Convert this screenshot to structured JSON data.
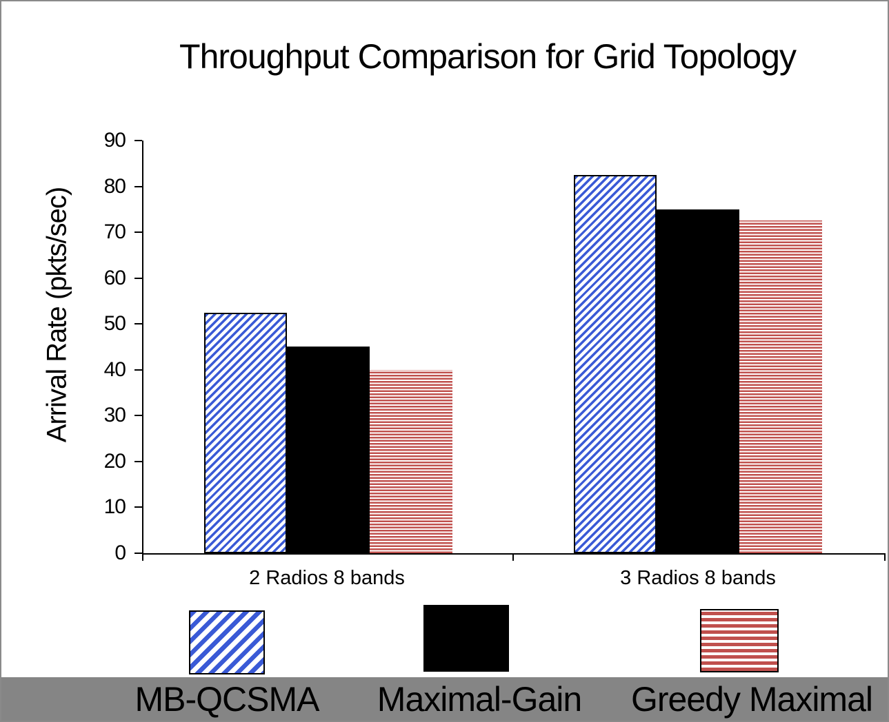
{
  "chart_data": {
    "type": "bar",
    "title": "Throughput Comparison for Grid Topology",
    "ylabel": "Arrival Rate (pkts/sec)",
    "xlabel": "",
    "ylim": [
      0,
      90
    ],
    "yticks": [
      0,
      10,
      20,
      30,
      40,
      50,
      60,
      70,
      80,
      90
    ],
    "grid": false,
    "legend_position": "bottom",
    "categories": [
      "2 Radios 8 bands",
      "3 Radios 8 bands"
    ],
    "series": [
      {
        "name": "MB-QCSMA",
        "style": "blue-diagonal-hatch",
        "values": [
          52.5,
          82.5
        ]
      },
      {
        "name": "Maximal-Gain",
        "style": "solid-black",
        "values": [
          45,
          75
        ]
      },
      {
        "name": "Greedy Maximal",
        "style": "red-horizontal-stripes",
        "values": [
          40,
          72.5
        ]
      }
    ]
  },
  "legend": {
    "items": [
      {
        "label": "MB-QCSMA",
        "swatch": "blue-diagonal-hatch"
      },
      {
        "label": "Maximal-Gain",
        "swatch": "solid-black"
      },
      {
        "label": "Greedy Maximal",
        "swatch": "red-horizontal-stripes"
      }
    ]
  },
  "colors": {
    "hatch_blue": "#3a5ad6",
    "hatch_red": "#c0504d",
    "bar_black": "#000000",
    "legend_band_gray": "#858585",
    "axis_black": "#000000",
    "background": "#ffffff",
    "frame_gray": "#8a8a8a"
  }
}
